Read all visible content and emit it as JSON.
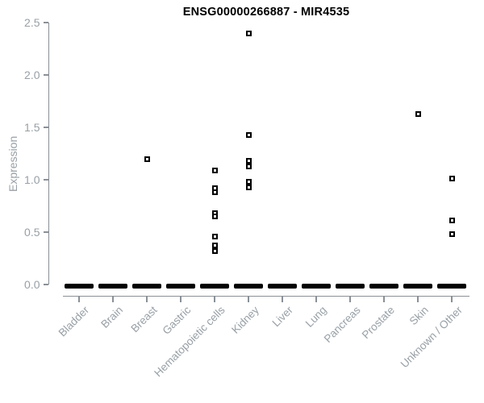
{
  "chart_data": {
    "type": "scatter",
    "title": "ENSG00000266887 - MIR4535",
    "xlabel": "",
    "ylabel": "Expression",
    "ylim": [
      0.0,
      2.5
    ],
    "yticks": [
      "0.0",
      "0.5",
      "1.0",
      "1.5",
      "2.0",
      "2.5"
    ],
    "grid": false,
    "legend": false,
    "marker": "open-square",
    "marker_color": "#000000",
    "axis_color": "#8a9096",
    "tick_label_color": "#98a0a6",
    "zero_cluster_note": "Every category shows a thick black dash of many overlapping samples at expression 0",
    "categories": [
      "Bladder",
      "Brain",
      "Breast",
      "Gastric",
      "Hematopoietic cells",
      "Kidney",
      "Liver",
      "Lung",
      "Pancreas",
      "Prostate",
      "Skin",
      "Unknown / Other"
    ],
    "series": [
      {
        "name": "Bladder",
        "zero_cluster": true,
        "nonzero_values": []
      },
      {
        "name": "Brain",
        "zero_cluster": true,
        "nonzero_values": []
      },
      {
        "name": "Breast",
        "zero_cluster": true,
        "nonzero_values": [
          1.2
        ]
      },
      {
        "name": "Gastric",
        "zero_cluster": true,
        "nonzero_values": []
      },
      {
        "name": "Hematopoietic cells",
        "zero_cluster": true,
        "nonzero_values": [
          1.09,
          0.92,
          0.88,
          0.68,
          0.65,
          0.46,
          0.37,
          0.32
        ]
      },
      {
        "name": "Kidney",
        "zero_cluster": true,
        "nonzero_values": [
          2.4,
          1.43,
          1.18,
          1.13,
          0.98,
          0.93
        ]
      },
      {
        "name": "Liver",
        "zero_cluster": true,
        "nonzero_values": []
      },
      {
        "name": "Lung",
        "zero_cluster": true,
        "nonzero_values": []
      },
      {
        "name": "Pancreas",
        "zero_cluster": true,
        "nonzero_values": []
      },
      {
        "name": "Prostate",
        "zero_cluster": true,
        "nonzero_values": []
      },
      {
        "name": "Skin",
        "zero_cluster": true,
        "nonzero_values": [
          1.63
        ]
      },
      {
        "name": "Unknown / Other",
        "zero_cluster": true,
        "nonzero_values": [
          1.01,
          0.61,
          0.48
        ]
      }
    ]
  }
}
